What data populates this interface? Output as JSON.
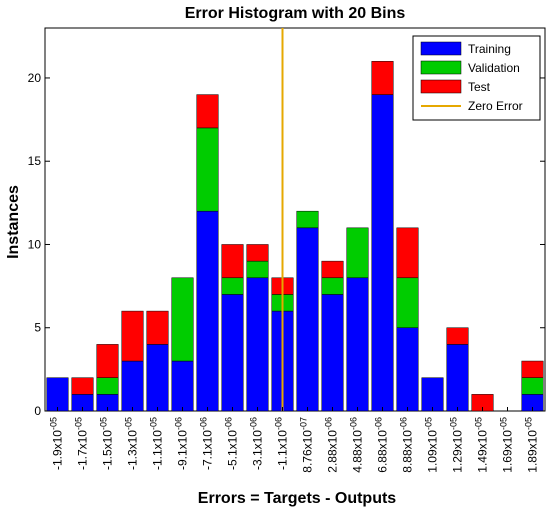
{
  "chart_data": {
    "type": "bar",
    "stacked": true,
    "title": "Error Histogram with 20 Bins",
    "xlabel": "Errors = Targets - Outputs",
    "ylabel": "Instances",
    "ylim": [
      0,
      23
    ],
    "y_ticks": [
      0,
      5,
      10,
      15,
      20
    ],
    "grid": false,
    "legend_position": "top-right",
    "categories": [
      "-1.9x10^-05",
      "-1.7x10^-05",
      "-1.5x10^-05",
      "-1.3x10^-05",
      "-1.1x10^-05",
      "-9.1x10^-06",
      "-7.1x10^-06",
      "-5.1x10^-06",
      "-3.1x10^-06",
      "-1.1x10^-06",
      "8.76x10^-07",
      "2.88x10^-06",
      "4.88x10^-06",
      "6.88x10^-06",
      "8.88x10^-06",
      "1.09x10^-05",
      "1.29x10^-05",
      "1.49x10^-05",
      "1.69x10^-05",
      "1.89x10^-05"
    ],
    "category_labels": [
      {
        "mantissa": "-1.9",
        "exp": "-05"
      },
      {
        "mantissa": "-1.7",
        "exp": "-05"
      },
      {
        "mantissa": "-1.5",
        "exp": "-05"
      },
      {
        "mantissa": "-1.3",
        "exp": "-05"
      },
      {
        "mantissa": "-1.1",
        "exp": "-05"
      },
      {
        "mantissa": "-9.1",
        "exp": "-06"
      },
      {
        "mantissa": "-7.1",
        "exp": "-06"
      },
      {
        "mantissa": "-5.1",
        "exp": "-06"
      },
      {
        "mantissa": "-3.1",
        "exp": "-06"
      },
      {
        "mantissa": "-1.1",
        "exp": "-06"
      },
      {
        "mantissa": "8.76",
        "exp": "-07"
      },
      {
        "mantissa": "2.88",
        "exp": "-06"
      },
      {
        "mantissa": "4.88",
        "exp": "-06"
      },
      {
        "mantissa": "6.88",
        "exp": "-06"
      },
      {
        "mantissa": "8.88",
        "exp": "-06"
      },
      {
        "mantissa": "1.09",
        "exp": "-05"
      },
      {
        "mantissa": "1.29",
        "exp": "-05"
      },
      {
        "mantissa": "1.49",
        "exp": "-05"
      },
      {
        "mantissa": "1.69",
        "exp": "-05"
      },
      {
        "mantissa": "1.89",
        "exp": "-05"
      }
    ],
    "series": [
      {
        "name": "Training",
        "color": "#0000ff",
        "values": [
          2,
          1,
          1,
          3,
          4,
          3,
          12,
          7,
          8,
          6,
          11,
          7,
          8,
          19,
          5,
          2,
          4,
          0,
          0,
          1
        ]
      },
      {
        "name": "Validation",
        "color": "#00cc00",
        "values": [
          0,
          0,
          1,
          0,
          0,
          5,
          5,
          1,
          1,
          1,
          1,
          1,
          3,
          0,
          3,
          0,
          0,
          0,
          0,
          1
        ]
      },
      {
        "name": "Test",
        "color": "#ff0000",
        "values": [
          0,
          1,
          2,
          3,
          2,
          0,
          2,
          2,
          1,
          1,
          0,
          1,
          0,
          2,
          3,
          0,
          1,
          1,
          0,
          1
        ]
      }
    ],
    "zero_error": {
      "label": "Zero Error",
      "color": "#e6a800",
      "position_index": 9.5
    }
  }
}
